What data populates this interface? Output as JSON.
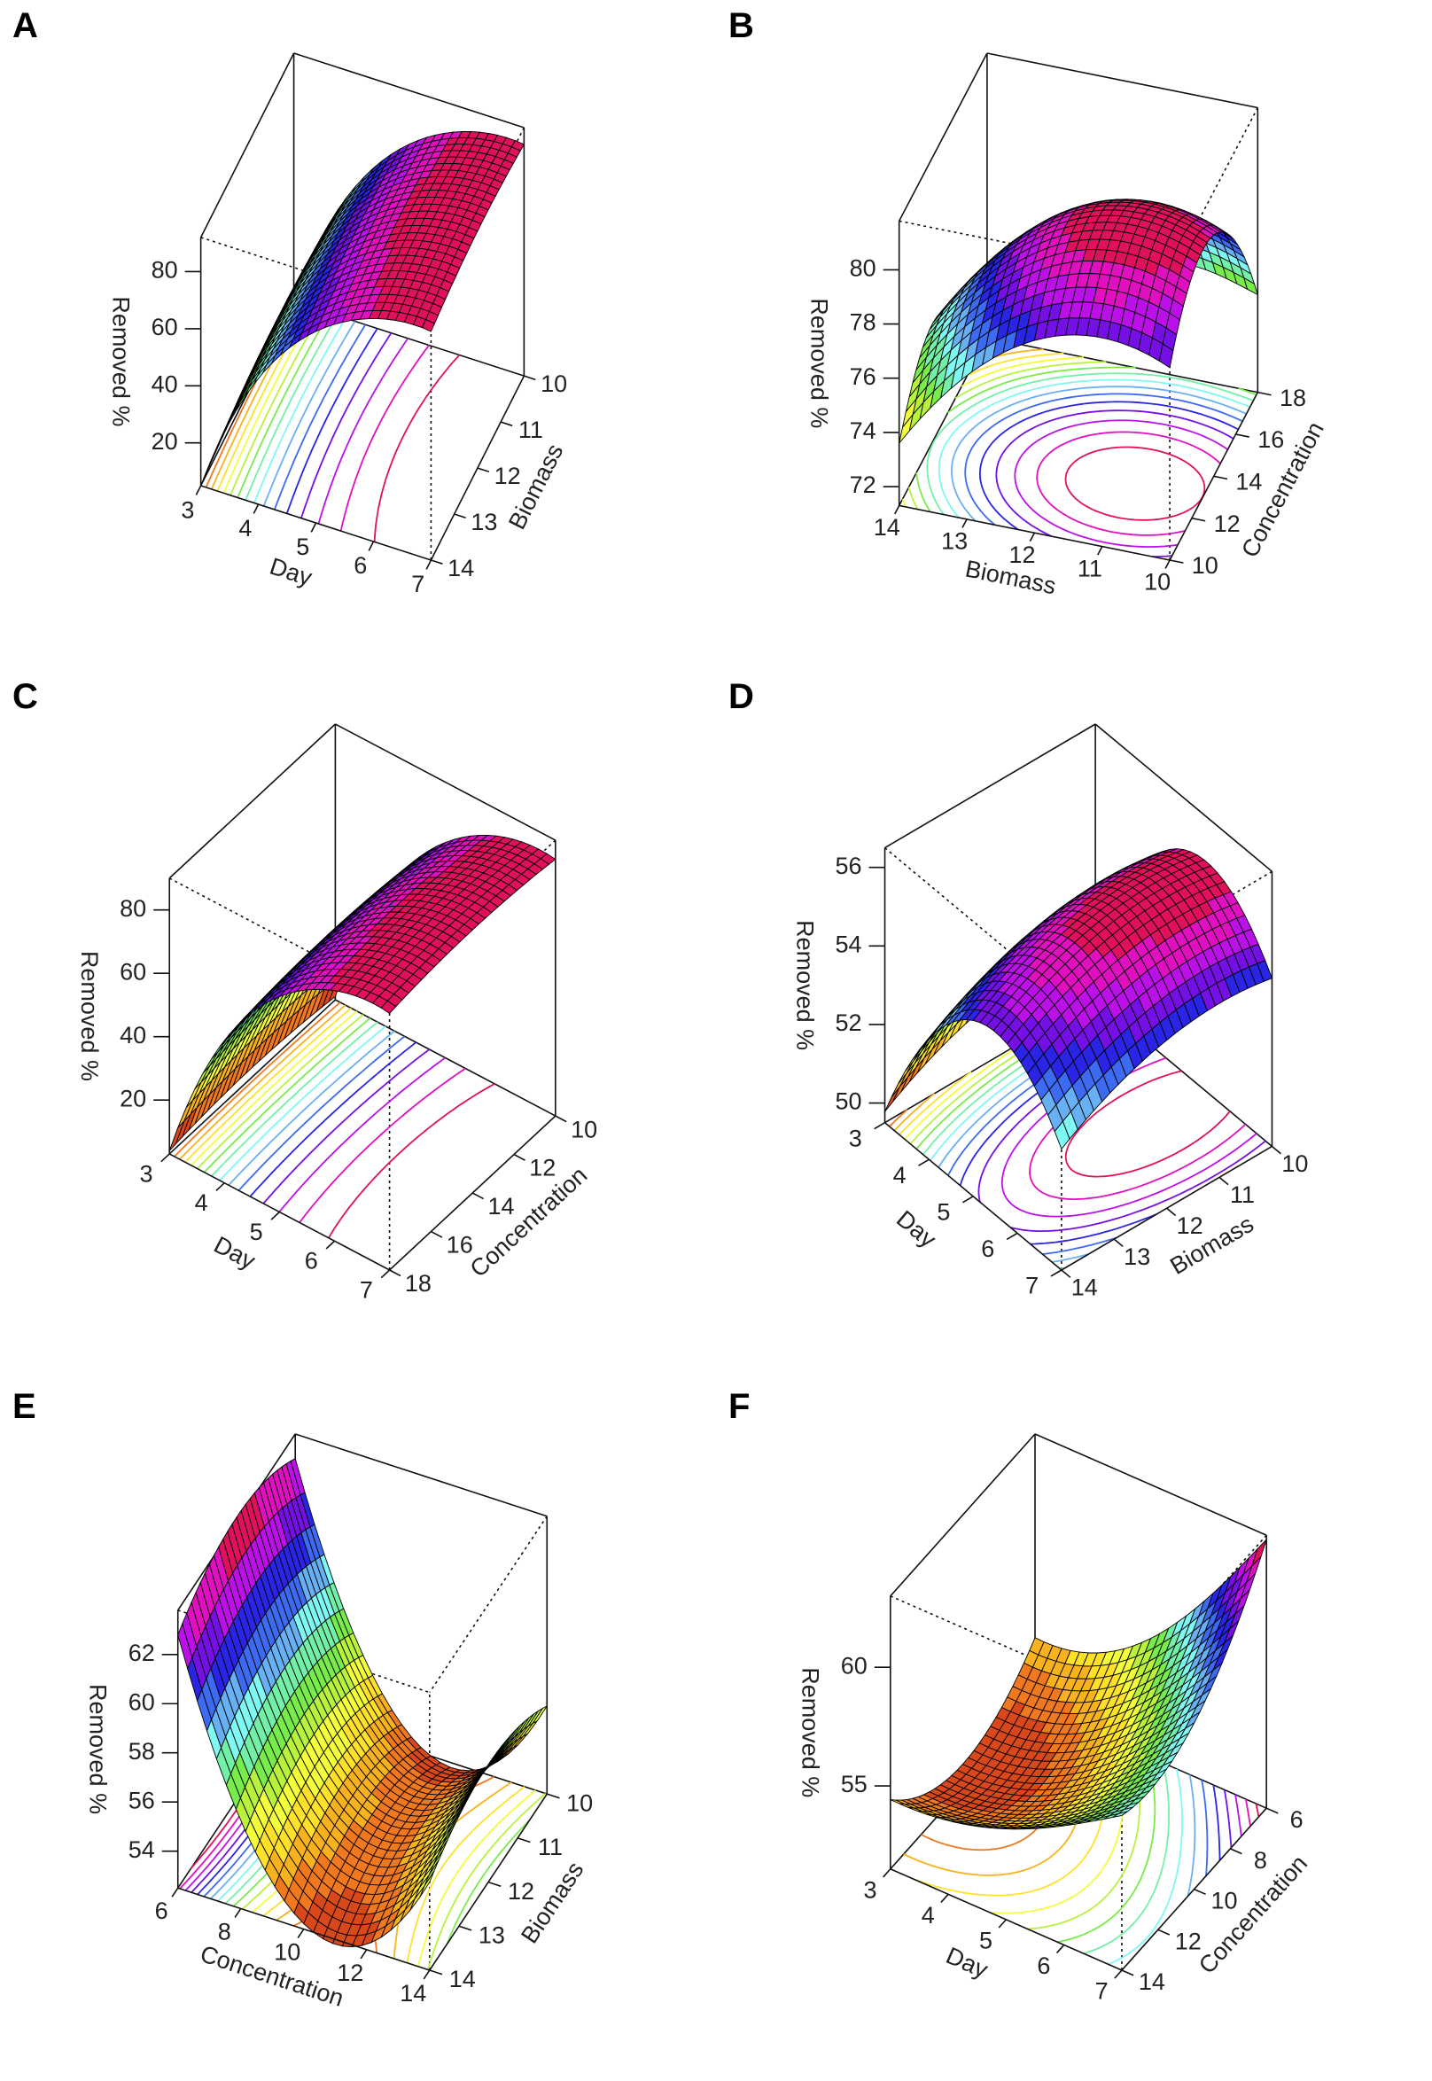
{
  "palette": [
    "#d9481b",
    "#f0781e",
    "#f8b21e",
    "#ffe12a",
    "#f2ff3a",
    "#b8f23c",
    "#78ec4a",
    "#72f0a8",
    "#7ff7f2",
    "#68b0f4",
    "#3c6af0",
    "#2a24e4",
    "#7410e4",
    "#bc10e8",
    "#e010c0",
    "#e0105c"
  ],
  "chart_data": [
    {
      "type": "surface3d",
      "panel": "A",
      "xlabel": "Day",
      "ylabel": "Biomass",
      "zlabel": "Removed %",
      "x": [
        3,
        4,
        5,
        6,
        7
      ],
      "y": [
        10,
        11,
        12,
        13,
        14
      ],
      "z_ticks": [
        20,
        40,
        60,
        80
      ],
      "zlim": [
        5,
        92
      ],
      "z": [
        [
          6.1,
          7.6,
          8.0,
          7.1,
          5.1
        ],
        [
          50.1,
          51.6,
          52.0,
          51.1,
          49.1
        ],
        [
          73.1,
          74.6,
          75.0,
          74.1,
          72.1
        ],
        [
          84.1,
          85.6,
          86.0,
          85.1,
          83.1
        ],
        [
          86.1,
          87.6,
          88.0,
          87.1,
          85.1
        ]
      ]
    },
    {
      "type": "surface3d",
      "panel": "B",
      "xlabel": "Biomass",
      "ylabel": "Concentration",
      "zlabel": "Removed %",
      "x": [
        10,
        11,
        12,
        13,
        14
      ],
      "y": [
        10,
        12,
        14,
        16,
        18
      ],
      "z_ticks": [
        72,
        74,
        76,
        78,
        80
      ],
      "zlim": [
        71.3,
        81.8
      ],
      "z": [
        [
          78.4,
          80.2,
          80.2,
          78.4,
          74.9
        ],
        [
          79.0,
          80.8,
          80.8,
          79.0,
          75.5
        ],
        [
          78.4,
          80.2,
          80.2,
          78.4,
          74.9
        ],
        [
          76.6,
          78.4,
          78.4,
          76.6,
          73.1
        ],
        [
          73.6,
          75.4,
          75.4,
          73.6,
          71.6
        ]
      ]
    },
    {
      "type": "surface3d",
      "panel": "C",
      "xlabel": "Day",
      "ylabel": "Concentration",
      "zlabel": "Removed %",
      "x": [
        3,
        4,
        5,
        6,
        7
      ],
      "y": [
        10,
        12,
        14,
        16,
        18
      ],
      "z_ticks": [
        20,
        40,
        60,
        80
      ],
      "zlim": [
        3,
        90
      ],
      "z": [
        [
          4,
          5.5,
          6,
          5.5,
          4
        ],
        [
          48,
          49.5,
          50,
          49.5,
          48
        ],
        [
          71,
          72.5,
          73,
          72.5,
          71
        ],
        [
          82,
          83.5,
          84,
          83.5,
          82
        ],
        [
          84,
          85.5,
          86,
          85.5,
          84
        ]
      ]
    },
    {
      "type": "surface3d",
      "panel": "D",
      "xlabel": "Day",
      "ylabel": "Biomass",
      "zlabel": "Removed %",
      "x": [
        3,
        4,
        5,
        6,
        7
      ],
      "y": [
        10,
        11,
        12,
        13,
        14
      ],
      "z_ticks": [
        50,
        52,
        54,
        56
      ],
      "zlim": [
        49.5,
        56.5
      ],
      "z": [
        [
          50.98,
          51.13,
          50.98,
          50.53,
          49.78
        ],
        [
          53.78,
          53.93,
          53.78,
          53.33,
          52.58
        ],
        [
          55.18,
          55.33,
          55.18,
          54.73,
          53.98
        ],
        [
          55.18,
          55.33,
          55.18,
          54.73,
          53.98
        ],
        [
          53.78,
          53.93,
          53.78,
          53.33,
          52.58
        ]
      ]
    },
    {
      "type": "surface3d",
      "panel": "E",
      "xlabel": "Concentration",
      "ylabel": "Biomass",
      "zlabel": "Removed %",
      "x": [
        6,
        8,
        10,
        12,
        14
      ],
      "y": [
        10,
        11,
        12,
        13,
        14
      ],
      "z_ticks": [
        54,
        56,
        58,
        60,
        62
      ],
      "zlim": [
        52.5,
        63.8
      ],
      "z": [
        [
          62.8,
          63.7,
          64.0,
          63.7,
          62.8
        ],
        [
          56.08,
          56.98,
          57.28,
          56.98,
          56.08
        ],
        [
          52.72,
          53.62,
          53.92,
          53.62,
          52.72
        ],
        [
          52.72,
          53.62,
          53.92,
          53.62,
          52.72
        ],
        [
          56.08,
          56.98,
          57.28,
          56.98,
          56.08
        ]
      ]
    },
    {
      "type": "surface3d",
      "panel": "F",
      "xlabel": "Day",
      "ylabel": "Concentration",
      "zlabel": "Removed %",
      "x": [
        3,
        4,
        5,
        6,
        7
      ],
      "y": [
        6,
        8,
        10,
        12,
        14
      ],
      "z_ticks": [
        55,
        60
      ],
      "zlim": [
        51.5,
        63
      ],
      "z": [
        [
          54.42,
          52.98,
          52.5,
          52.98,
          54.42
        ],
        [
          54.84,
          53.34,
          52.8,
          53.22,
          54.6
        ],
        [
          56.52,
          54.78,
          54.0,
          54.18,
          55.32
        ],
        [
          59.32,
          57.18,
          56.0,
          55.78,
          56.52
        ],
        [
          62.82,
          60.18,
          58.5,
          57.78,
          58.02
        ]
      ]
    }
  ]
}
